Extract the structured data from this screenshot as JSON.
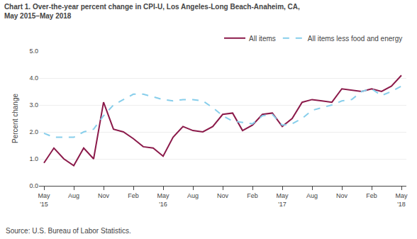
{
  "chart_data": {
    "type": "line",
    "title": "Chart 1. Over-the-year percent change in CPI-U, Los Angeles-Long Beach-Anaheim, CA,",
    "subtitle": "May 2015–May 2018",
    "ylabel": "Percent change",
    "annotations": [
      "Source: U.S. Bureau of Labor Statistics."
    ],
    "categories": [
      "May\n'15",
      null,
      null,
      "Aug",
      null,
      null,
      "Nov",
      null,
      null,
      "Feb",
      null,
      null,
      "May\n'16",
      null,
      null,
      "Aug",
      null,
      null,
      "Nov",
      null,
      null,
      "Feb",
      null,
      null,
      "May\n'17",
      null,
      null,
      "Aug",
      null,
      null,
      "Nov",
      null,
      null,
      "Feb",
      null,
      null,
      "May\n'18"
    ],
    "series": [
      {
        "name": "All items",
        "color": "#8B1A4A",
        "line_style": "solid",
        "values": [
          0.85,
          1.4,
          1.0,
          0.75,
          1.4,
          1.0,
          3.1,
          2.1,
          2.0,
          1.75,
          1.45,
          1.4,
          1.1,
          1.8,
          2.2,
          2.05,
          2.0,
          2.2,
          2.65,
          2.7,
          2.05,
          2.25,
          2.65,
          2.7,
          2.2,
          2.5,
          3.1,
          3.2,
          3.15,
          3.1,
          3.6,
          3.55,
          3.5,
          3.6,
          3.5,
          3.7,
          4.1
        ]
      },
      {
        "name": "All items less food and energy",
        "color": "#87CEEB",
        "line_style": "dashed",
        "values": [
          1.95,
          1.8,
          1.8,
          1.8,
          2.0,
          2.1,
          2.6,
          3.0,
          3.2,
          3.4,
          3.4,
          3.3,
          3.2,
          3.15,
          3.2,
          3.2,
          3.15,
          2.9,
          2.6,
          2.4,
          2.35,
          2.3,
          2.6,
          2.65,
          2.25,
          2.3,
          2.5,
          2.8,
          2.9,
          3.0,
          3.15,
          3.2,
          3.5,
          3.6,
          3.35,
          3.5,
          3.7
        ]
      }
    ],
    "ylim": [
      0.0,
      5.0
    ],
    "yticks": [
      {
        "value": 0.0,
        "label": "0.0"
      },
      {
        "value": 1.0,
        "label": "1.0"
      },
      {
        "value": 2.0,
        "label": "2.0"
      },
      {
        "value": 3.0,
        "label": "3.0"
      },
      {
        "value": 4.0,
        "label": "4.0"
      },
      {
        "value": 5.0,
        "label": "5.0"
      }
    ],
    "grid": true,
    "legend": "top right"
  }
}
